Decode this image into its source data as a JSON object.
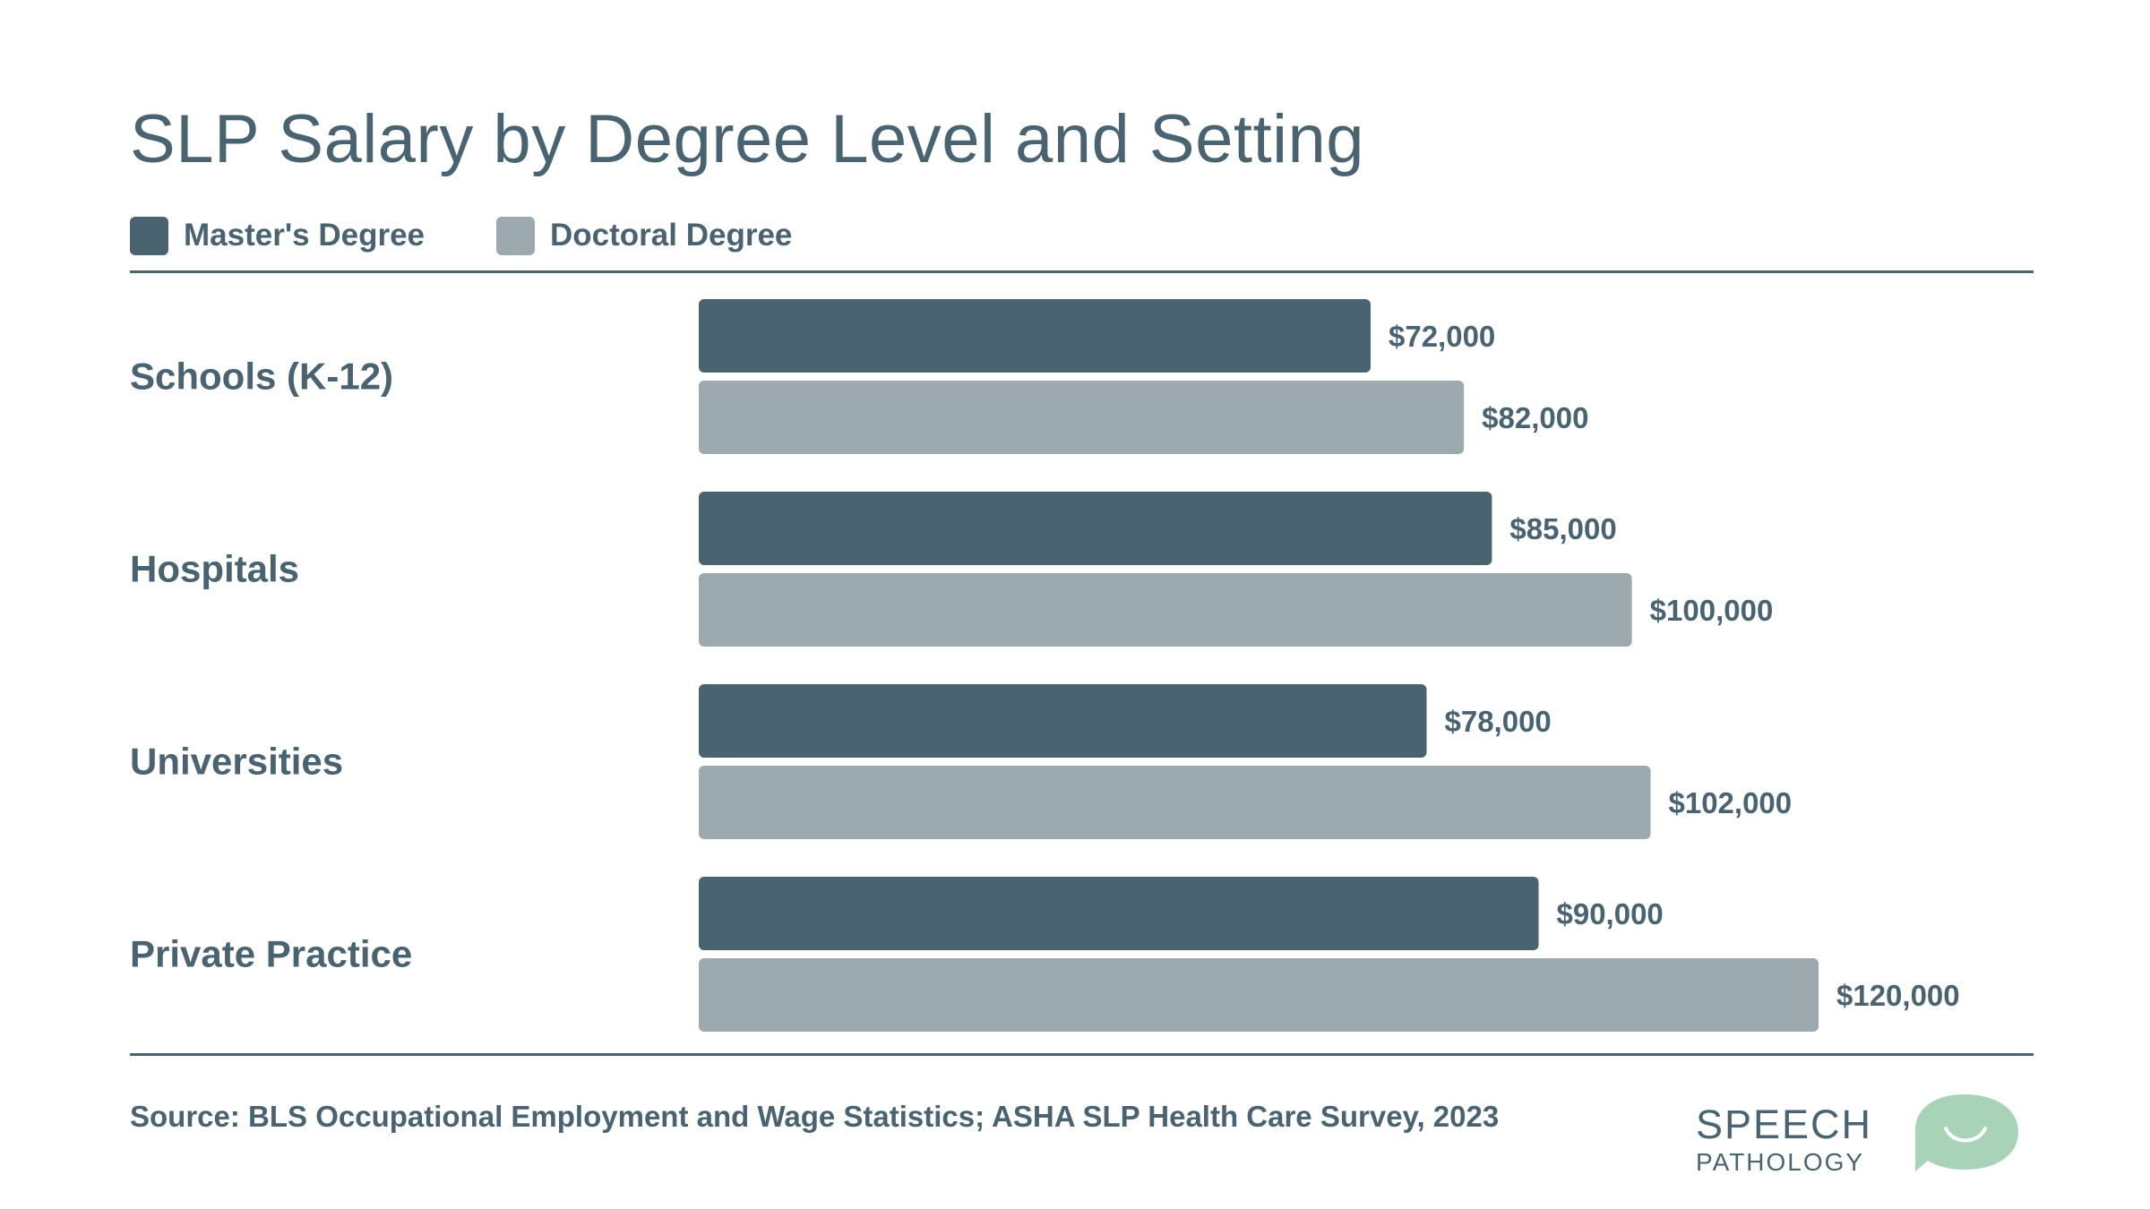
{
  "colors": {
    "text": "#4a6370",
    "masters": "#4a6370",
    "doctoral": "#9ca9af",
    "logo_bubble": "#a9d3b9"
  },
  "chart_data": {
    "type": "bar",
    "orientation": "horizontal",
    "title": "SLP Salary by Degree Level and Setting",
    "categories": [
      "Schools (K-12)",
      "Hospitals",
      "Universities",
      "Private Practice"
    ],
    "series": [
      {
        "name": "Master's Degree",
        "color": "#4a6370",
        "values": [
          72000,
          85000,
          78000,
          90000
        ],
        "labels": [
          "$72,000",
          "$85,000",
          "$78,000",
          "$90,000"
        ]
      },
      {
        "name": "Doctoral Degree",
        "color": "#9ca9af",
        "values": [
          82000,
          100000,
          102000,
          120000
        ],
        "labels": [
          "$82,000",
          "$100,000",
          "$102,000",
          "$120,000"
        ]
      }
    ],
    "xlim": [
      0,
      120000
    ],
    "legend": "top-left",
    "grid": false
  },
  "footer": {
    "source": "Source: BLS Occupational Employment and Wage Statistics; ASHA SLP Health Care Survey, 2023"
  },
  "logo": {
    "line1": "SPEECH",
    "line2": "PATHOLOGY",
    "icon": "speech-bubble-smile-icon"
  }
}
